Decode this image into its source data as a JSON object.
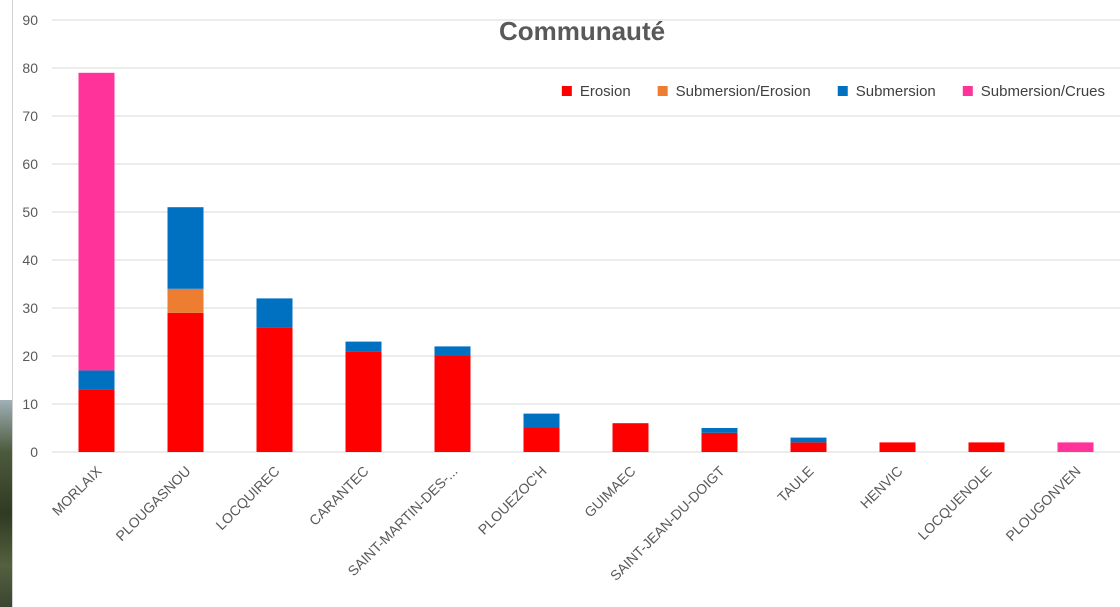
{
  "chart_data": {
    "type": "bar",
    "stacked": true,
    "title_lines": [
      "",
      "Communauté"
    ],
    "ylim": [
      0,
      90
    ],
    "yticks": [
      0,
      10,
      20,
      30,
      40,
      50,
      60,
      70,
      80,
      90
    ],
    "grid": true,
    "legend_position": "top-right",
    "categories": [
      "MORLAIX",
      "PLOUGASNOU",
      "LOCQUIREC",
      "CARANTEC",
      "SAINT-MARTIN-DES-...",
      "PLOUEZOC'H",
      "GUIMAEC",
      "SAINT-JEAN-DU-DOIGT",
      "TAULE",
      "HENVIC",
      "LOCQUENOLE",
      "PLOUGONVEN"
    ],
    "series": [
      {
        "name": "Erosion",
        "color": "#ff0000",
        "values": [
          13,
          29,
          26,
          21,
          20,
          5,
          6,
          4,
          2,
          2,
          2,
          0
        ]
      },
      {
        "name": "Submersion/Erosion",
        "color": "#ed7d31",
        "values": [
          0,
          5,
          0,
          0,
          0,
          0,
          0,
          0,
          0,
          0,
          0,
          0
        ]
      },
      {
        "name": "Submersion",
        "color": "#0070c0",
        "values": [
          4,
          17,
          6,
          2,
          2,
          3,
          0,
          1,
          1,
          0,
          0,
          0
        ]
      },
      {
        "name": "Submersion/Crues",
        "color": "#ff3399",
        "values": [
          62,
          0,
          0,
          0,
          0,
          0,
          0,
          0,
          0,
          0,
          0,
          2
        ]
      }
    ]
  }
}
